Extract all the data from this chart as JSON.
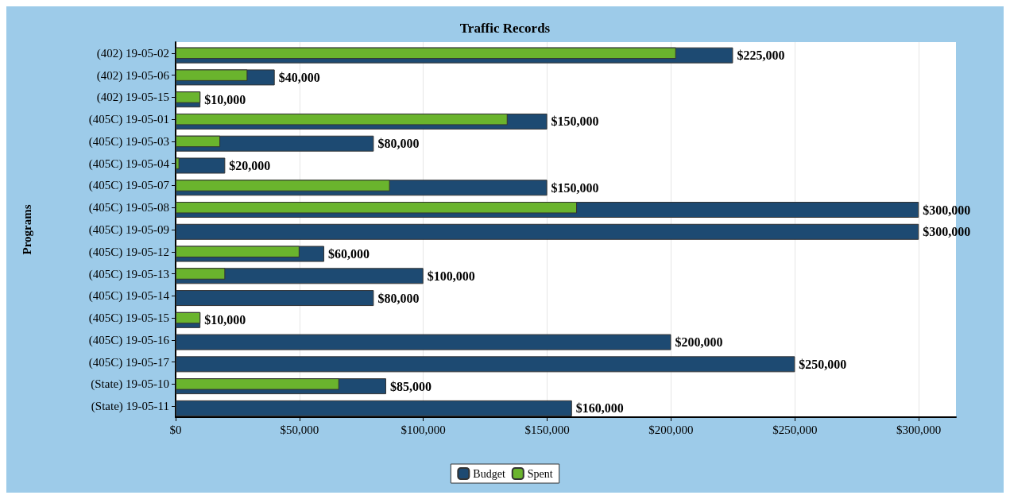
{
  "chart_data": {
    "type": "bar",
    "orientation": "horizontal",
    "title": "Traffic Records",
    "ylabel": "Programs",
    "categories": [
      "(402) 19-05-02",
      "(402) 19-05-06",
      "(402) 19-05-15",
      "(405C) 19-05-01",
      "(405C) 19-05-03",
      "(405C) 19-05-04",
      "(405C) 19-05-07",
      "(405C) 19-05-08",
      "(405C) 19-05-09",
      "(405C) 19-05-12",
      "(405C) 19-05-13",
      "(405C) 19-05-14",
      "(405C) 19-05-15",
      "(405C) 19-05-16",
      "(405C) 19-05-17",
      "(State) 19-05-10",
      "(State) 19-05-11"
    ],
    "series": [
      {
        "name": "Budget",
        "color": "#1d4a72",
        "values": [
          225000,
          40000,
          10000,
          150000,
          80000,
          20000,
          150000,
          300000,
          300000,
          60000,
          100000,
          80000,
          10000,
          200000,
          250000,
          85000,
          160000
        ],
        "value_labels": [
          "$225,000",
          "$40,000",
          "$10,000",
          "$150,000",
          "$80,000",
          "$20,000",
          "$150,000",
          "$300,000",
          "$300,000",
          "$60,000",
          "$100,000",
          "$80,000",
          "$10,000",
          "$200,000",
          "$250,000",
          "$85,000",
          "$160,000"
        ]
      },
      {
        "name": "Spent",
        "color": "#6ab42d",
        "values": [
          202000,
          29000,
          10000,
          134000,
          18000,
          1500,
          86500,
          162000,
          null,
          50000,
          20000,
          null,
          10000,
          null,
          null,
          66000,
          null
        ]
      }
    ],
    "xlim": [
      0,
      315000
    ],
    "xticks": [
      {
        "value": 0,
        "label": "$0"
      },
      {
        "value": 50000,
        "label": "$50,000"
      },
      {
        "value": 100000,
        "label": "$100,000"
      },
      {
        "value": 150000,
        "label": "$150,000"
      },
      {
        "value": 200000,
        "label": "$200,000"
      },
      {
        "value": 250000,
        "label": "$250,000"
      },
      {
        "value": 300000,
        "label": "$300,000"
      }
    ],
    "grid": "x",
    "legend": "bottom"
  }
}
